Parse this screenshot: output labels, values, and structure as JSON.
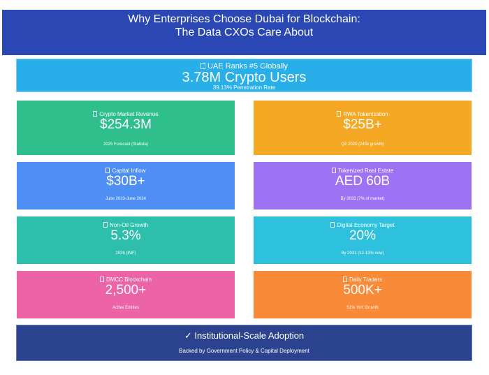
{
  "header": {
    "title_line1": "Why Enterprises Choose Dubai for Blockchain:",
    "title_line2": "The Data CXOs Care About"
  },
  "hero": {
    "label": "UAE Ranks #5 Globally",
    "value": "3.78M Crypto Users",
    "sub": "39.13% Penetration Rate",
    "icon": "emoji-placeholder-icon"
  },
  "cards": [
    {
      "label": "Crypto Market Revenue",
      "value": "$254.3M",
      "sub": "2025 Forecast (Statista)",
      "color": "#2fbf8c",
      "icon": "emoji-placeholder-icon"
    },
    {
      "label": "RWA Tokenization",
      "value": "$25B+",
      "sub": "Q2 2025 (245x growth)",
      "color": "#f4a824",
      "icon": "emoji-placeholder-icon"
    },
    {
      "label": "Capital Inflow",
      "value": "$30B+",
      "sub": "June 2023-June 2024",
      "color": "#4f8ff5",
      "icon": "emoji-placeholder-icon"
    },
    {
      "label": "Tokenized Real Estate",
      "value": "AED 60B",
      "sub": "By 2033 (7% of market)",
      "color": "#9d72f5",
      "icon": "emoji-placeholder-icon"
    },
    {
      "label": "Non-Oil Growth",
      "value": "5.3%",
      "sub": "2026 (IMF)",
      "color": "#2ebfac",
      "icon": "emoji-placeholder-icon"
    },
    {
      "label": "Digital Economy Target",
      "value": "20%",
      "sub": "By 2031 (12-13% now)",
      "color": "#2ec1dd",
      "icon": "emoji-placeholder-icon"
    },
    {
      "label": "DMCC Blockchain",
      "value": "2,500+",
      "sub": "Active Entities",
      "color": "#ec64a7",
      "icon": "emoji-placeholder-icon"
    },
    {
      "label": "Daily Traders",
      "value": "500K+",
      "sub": "51% YoY Growth",
      "color": "#f98a38",
      "icon": "emoji-placeholder-icon"
    }
  ],
  "footer": {
    "title": "✓ Institutional-Scale Adoption",
    "sub": "Backed by Government Policy & Capital Deployment"
  },
  "colors": {
    "header_bg": "#2a47b4",
    "hero_bg": "#28aee8",
    "footer_bg": "#2b438f"
  }
}
